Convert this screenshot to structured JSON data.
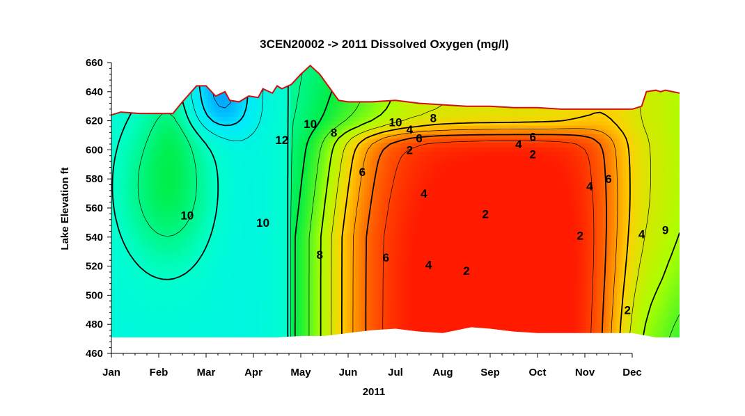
{
  "chart_data": {
    "type": "contour",
    "title": "3CEN20002  ->  2011 Dissolved Oxygen (mg/l)",
    "xlabel": "2011",
    "ylabel": "Lake  Elevation  ft",
    "x_ticks": [
      "Jan",
      "Feb",
      "Mar",
      "Apr",
      "May",
      "Jun",
      "Jul",
      "Aug",
      "Sep",
      "Oct",
      "Nov",
      "Dec"
    ],
    "ylim": [
      460,
      660
    ],
    "y_ticks": [
      460,
      480,
      500,
      520,
      540,
      560,
      580,
      600,
      620,
      640,
      660
    ],
    "color_scale": {
      "min": 0,
      "max": 16,
      "stops": [
        "#ff1a00",
        "#ff6a00",
        "#ffd000",
        "#aaff00",
        "#00ee44",
        "#00ffcc",
        "#00e8ff",
        "#0080ff",
        "#1a3cff"
      ]
    },
    "contour_labels": [
      {
        "month": 1.6,
        "elev": 555,
        "text": "10"
      },
      {
        "month": 3.2,
        "elev": 550,
        "text": "10"
      },
      {
        "month": 4.2,
        "elev": 618,
        "text": "10"
      },
      {
        "month": 3.6,
        "elev": 607,
        "text": "12"
      },
      {
        "month": 4.7,
        "elev": 612,
        "text": "8"
      },
      {
        "month": 4.4,
        "elev": 528,
        "text": "8"
      },
      {
        "month": 5.3,
        "elev": 585,
        "text": "6"
      },
      {
        "month": 5.8,
        "elev": 526,
        "text": "6"
      },
      {
        "month": 6.6,
        "elev": 570,
        "text": "4"
      },
      {
        "month": 6.7,
        "elev": 521,
        "text": "4"
      },
      {
        "month": 6.3,
        "elev": 600,
        "text": "2"
      },
      {
        "month": 7.9,
        "elev": 556,
        "text": "2"
      },
      {
        "month": 7.5,
        "elev": 517,
        "text": "2"
      },
      {
        "month": 6.0,
        "elev": 619,
        "text": "10"
      },
      {
        "month": 6.3,
        "elev": 614,
        "text": "4"
      },
      {
        "month": 6.5,
        "elev": 608,
        "text": "6"
      },
      {
        "month": 6.8,
        "elev": 622,
        "text": "8"
      },
      {
        "month": 8.9,
        "elev": 609,
        "text": "6"
      },
      {
        "month": 8.6,
        "elev": 604,
        "text": "4"
      },
      {
        "month": 8.9,
        "elev": 597,
        "text": "2"
      },
      {
        "month": 10.1,
        "elev": 575,
        "text": "4"
      },
      {
        "month": 10.5,
        "elev": 580,
        "text": "6"
      },
      {
        "month": 9.9,
        "elev": 541,
        "text": "2"
      },
      {
        "month": 11.2,
        "elev": 542,
        "text": "4"
      },
      {
        "month": 11.7,
        "elev": 545,
        "text": "9"
      },
      {
        "month": 10.9,
        "elev": 490,
        "text": "2"
      }
    ]
  }
}
